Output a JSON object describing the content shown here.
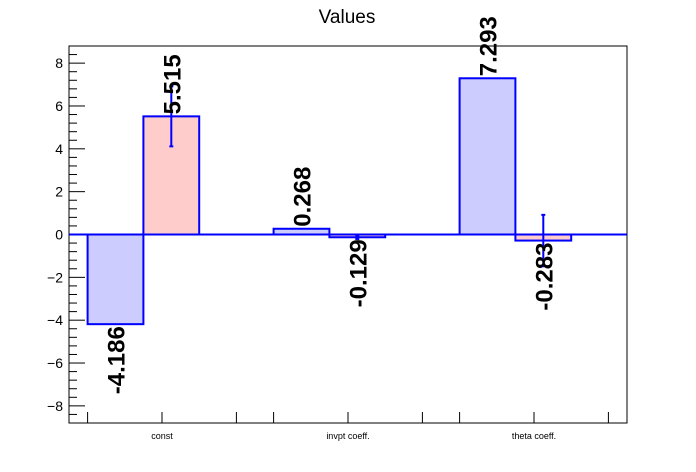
{
  "chart_data": {
    "type": "bar",
    "title": "Values",
    "xlabel": "",
    "ylabel": "",
    "categories": [
      "const",
      "invpt coeff.",
      "theta coeff."
    ],
    "ylim": [
      -8.8,
      8.8
    ],
    "yticks": [
      -8,
      -6,
      -4,
      -2,
      0,
      2,
      4,
      6,
      8
    ],
    "ytick_labels": [
      "−8",
      "−6",
      "−4",
      "−2",
      "0",
      "2",
      "4",
      "6",
      "8"
    ],
    "grid": false,
    "legend": "none",
    "series": [
      {
        "values": [
          -4.186,
          0.268,
          7.293
        ],
        "labels": [
          "-4.186",
          "0.268",
          "7.293"
        ],
        "errors": [
          null,
          null,
          null
        ],
        "fill": "#ccccff",
        "stroke": "#0000ff"
      },
      {
        "values": [
          5.515,
          -0.129,
          -0.283
        ],
        "labels": [
          "5.515",
          "-0.129",
          "-0.283"
        ],
        "errors": [
          1.4,
          0.08,
          1.2
        ],
        "fill": "#ffcccc",
        "stroke": "#0000ff"
      }
    ]
  }
}
